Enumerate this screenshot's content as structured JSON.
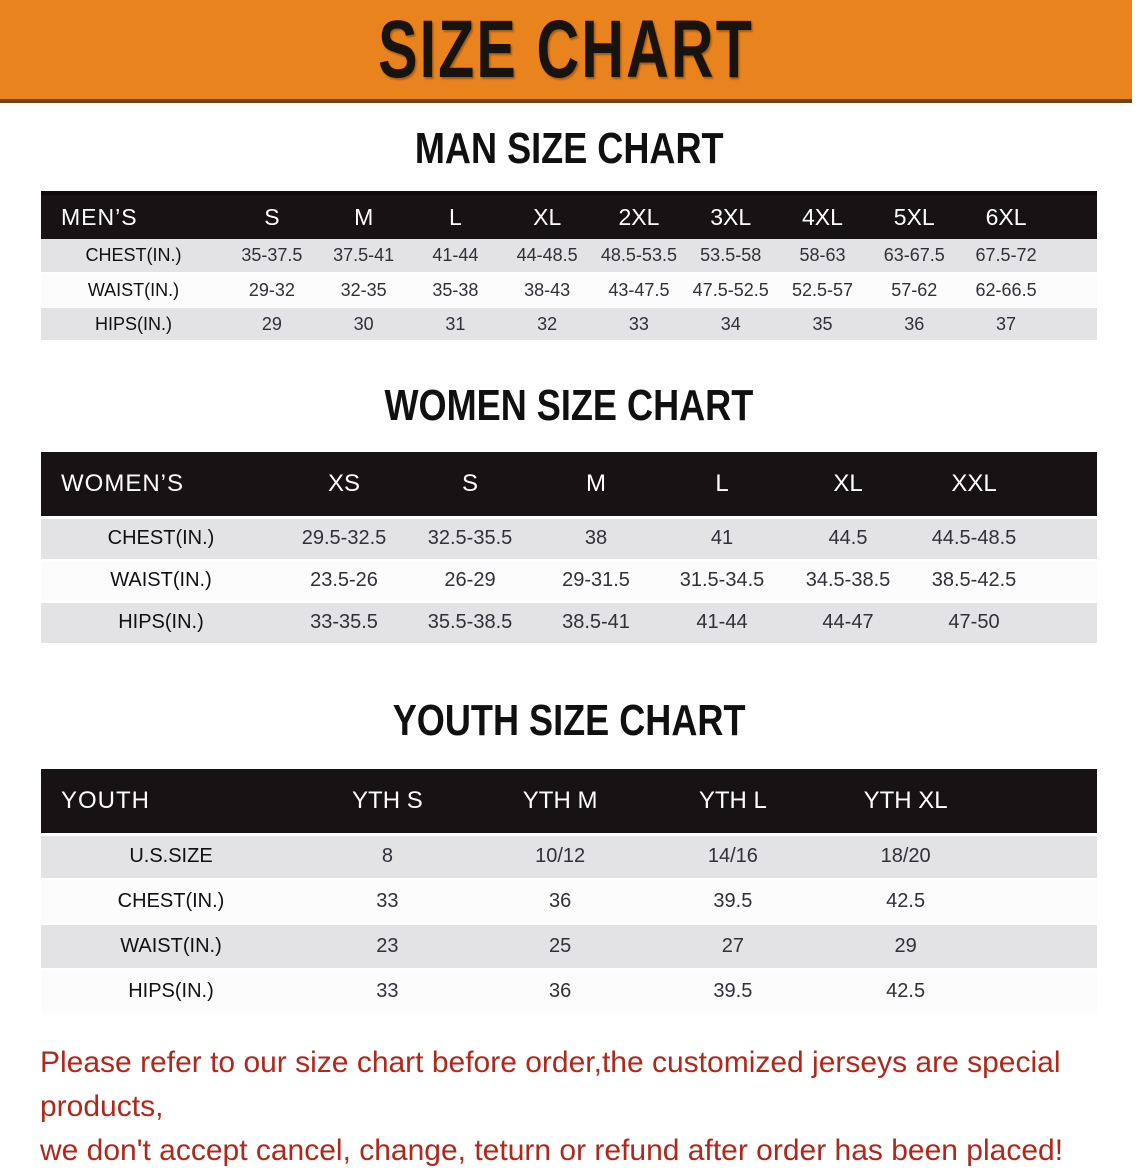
{
  "banner": {
    "title": "SIZE CHART"
  },
  "colors": {
    "banner_orange": "#E8831E",
    "band_black": "#171213",
    "row_gray": "#E3E3E5",
    "footer_red": "#B1271B"
  },
  "sections": [
    {
      "heading": "MAN SIZE CHART",
      "table": {
        "corner": "MEN’S",
        "columns": [
          "S",
          "M",
          "L",
          "XL",
          "2XL",
          "3XL",
          "4XL",
          "5XL",
          "6XL"
        ],
        "rows": [
          {
            "label": "CHEST(IN.)",
            "values": [
              "35-37.5",
              "37.5-41",
              "41-44",
              "44-48.5",
              "48.5-53.5",
              "53.5-58",
              "58-63",
              "63-67.5",
              "67.5-72"
            ]
          },
          {
            "label": "WAIST(IN.)",
            "values": [
              "29-32",
              "32-35",
              "35-38",
              "38-43",
              "43-47.5",
              "47.5-52.5",
              "52.5-57",
              "57-62",
              "62-66.5"
            ]
          },
          {
            "label": "HIPS(IN.)",
            "values": [
              "29",
              "30",
              "31",
              "32",
              "33",
              "34",
              "35",
              "36",
              "37"
            ]
          }
        ]
      }
    },
    {
      "heading": "WOMEN SIZE CHART",
      "table": {
        "corner": "WOMEN’S",
        "columns": [
          "XS",
          "S",
          "M",
          "L",
          "XL",
          "XXL"
        ],
        "rows": [
          {
            "label": "CHEST(IN.)",
            "values": [
              "29.5-32.5",
              "32.5-35.5",
              "38",
              "41",
              "44.5",
              "44.5-48.5"
            ]
          },
          {
            "label": "WAIST(IN.)",
            "values": [
              "23.5-26",
              "26-29",
              "29-31.5",
              "31.5-34.5",
              "34.5-38.5",
              "38.5-42.5"
            ]
          },
          {
            "label": "HIPS(IN.)",
            "values": [
              "33-35.5",
              "35.5-38.5",
              "38.5-41",
              "41-44",
              "44-47",
              "47-50"
            ]
          }
        ]
      }
    },
    {
      "heading": "YOUTH SIZE CHART",
      "table": {
        "corner": "YOUTH",
        "columns": [
          "YTH S",
          "YTH M",
          "YTH L",
          "YTH XL"
        ],
        "rows": [
          {
            "label": "U.S.SIZE",
            "values": [
              "8",
              "10/12",
              "14/16",
              "18/20"
            ]
          },
          {
            "label": "CHEST(IN.)",
            "values": [
              "33",
              "36",
              "39.5",
              "42.5"
            ]
          },
          {
            "label": "WAIST(IN.)",
            "values": [
              "23",
              "25",
              "27",
              "29"
            ]
          },
          {
            "label": "HIPS(IN.)",
            "values": [
              "33",
              "36",
              "39.5",
              "42.5"
            ]
          }
        ]
      }
    }
  ],
  "footer": {
    "line1": "Please refer to our size chart before order,the customized jerseys are special products,",
    "line2": "we don't accept cancel, change, teturn or refund after order has been placed!"
  }
}
